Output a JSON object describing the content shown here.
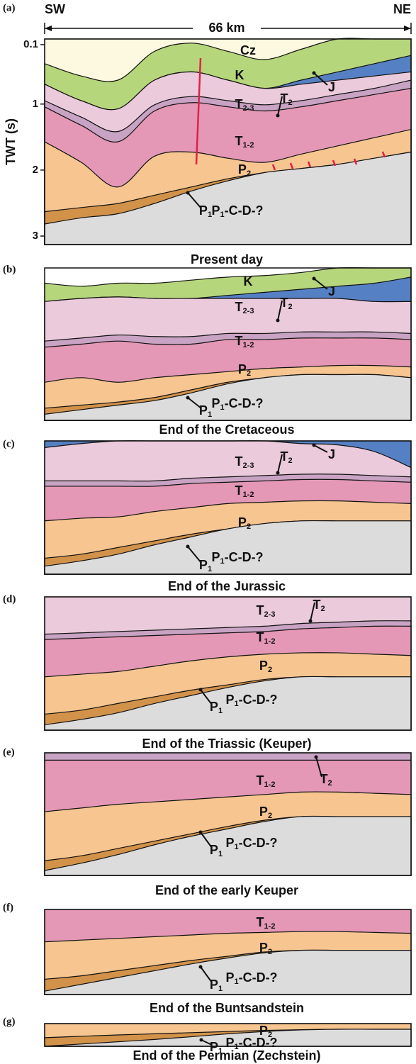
{
  "header": {
    "sw": "SW",
    "ne": "NE",
    "distance": "66 km"
  },
  "axis": {
    "title": "TWT (s)",
    "ticks": [
      0.1,
      1,
      2,
      3
    ]
  },
  "panels": [
    {
      "id": "(a)",
      "caption": "Present day",
      "labels": [
        {
          "main": "Cz"
        },
        {
          "main": "K"
        },
        {
          "main": "J"
        },
        {
          "main": "T",
          "sub": "2-3"
        },
        {
          "main": "T",
          "sub": "2"
        },
        {
          "main": "T",
          "sub": "1-2"
        },
        {
          "main": "P",
          "sub": "2"
        },
        {
          "main": "P",
          "sub": "1"
        },
        {
          "main": "P",
          "sub": "1",
          "tail": "-C-D-?"
        }
      ]
    },
    {
      "id": "(b)",
      "caption": "End of the Cretaceous",
      "labels": [
        {
          "main": "K"
        },
        {
          "main": "J"
        },
        {
          "main": "T",
          "sub": "2-3"
        },
        {
          "main": "T",
          "sub": "2"
        },
        {
          "main": "T",
          "sub": "1-2"
        },
        {
          "main": "P",
          "sub": "2"
        },
        {
          "main": "P",
          "sub": "1"
        },
        {
          "main": "P",
          "sub": "1",
          "tail": "-C-D-?"
        }
      ]
    },
    {
      "id": "(c)",
      "caption": "End of the Jurassic",
      "labels": [
        {
          "main": "J"
        },
        {
          "main": "T",
          "sub": "2-3"
        },
        {
          "main": "T",
          "sub": "2"
        },
        {
          "main": "T",
          "sub": "1-2"
        },
        {
          "main": "P",
          "sub": "2"
        },
        {
          "main": "P",
          "sub": "1"
        },
        {
          "main": "P",
          "sub": "1",
          "tail": "-C-D-?"
        }
      ]
    },
    {
      "id": "(d)",
      "caption": "End of the Triassic (Keuper)",
      "labels": [
        {
          "main": "T",
          "sub": "2-3"
        },
        {
          "main": "T",
          "sub": "2"
        },
        {
          "main": "T",
          "sub": "1-2"
        },
        {
          "main": "P",
          "sub": "2"
        },
        {
          "main": "P",
          "sub": "1"
        },
        {
          "main": "P",
          "sub": "1",
          "tail": "-C-D-?"
        }
      ]
    },
    {
      "id": "(e)",
      "caption": "End of the early Keuper",
      "labels": [
        {
          "main": "T",
          "sub": "1-2"
        },
        {
          "main": "T",
          "sub": "2"
        },
        {
          "main": "P",
          "sub": "2"
        },
        {
          "main": "P",
          "sub": "1"
        },
        {
          "main": "P",
          "sub": "1",
          "tail": "-C-D-?"
        }
      ]
    },
    {
      "id": "(f)",
      "caption": "End of the Buntsandstein",
      "labels": [
        {
          "main": "T",
          "sub": "1-2"
        },
        {
          "main": "P",
          "sub": "2"
        },
        {
          "main": "P",
          "sub": "1"
        },
        {
          "main": "P",
          "sub": "1",
          "tail": "-C-D-?"
        }
      ]
    },
    {
      "id": "(g)",
      "caption": "End of the Permian (Zechstein)",
      "labels": [
        {
          "main": "P",
          "sub": "2"
        },
        {
          "main": "P",
          "sub": "1"
        },
        {
          "main": "P",
          "sub": "1",
          "tail": "-C-D-?"
        }
      ]
    }
  ]
}
